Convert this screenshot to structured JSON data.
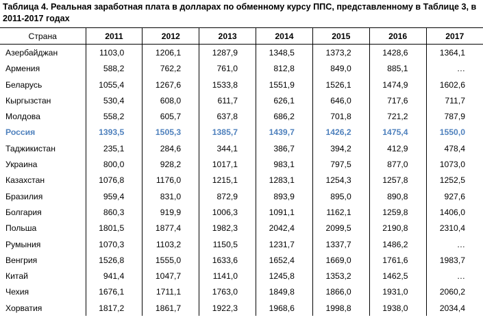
{
  "title": "Таблица 4. Реальная заработная плата в долларах по обменному курсу ППС, представленному в Таблице 3, в 2011-2017 годах",
  "table": {
    "header": [
      "Страна",
      "2011",
      "2012",
      "2013",
      "2014",
      "2015",
      "2016",
      "2017"
    ],
    "rows": [
      [
        "Азербайджан",
        "1103,0",
        "1206,1",
        "1287,9",
        "1348,5",
        "1373,2",
        "1428,6",
        "1364,1"
      ],
      [
        "Армения",
        "588,2",
        "762,2",
        "761,0",
        "812,8",
        "849,0",
        "885,1",
        "…"
      ],
      [
        "Беларусь",
        "1055,4",
        "1267,6",
        "1533,8",
        "1551,9",
        "1526,1",
        "1474,9",
        "1602,6"
      ],
      [
        "Кыргызстан",
        "530,4",
        "608,0",
        "611,7",
        "626,1",
        "646,0",
        "717,6",
        "711,7"
      ],
      [
        "Молдова",
        "558,2",
        "605,7",
        "637,8",
        "686,2",
        "701,8",
        "721,2",
        "787,9"
      ],
      [
        "Россия",
        "1393,5",
        "1505,3",
        "1385,7",
        "1439,7",
        "1426,2",
        "1475,4",
        "1550,0"
      ],
      [
        "Таджикистан",
        "235,1",
        "284,6",
        "344,1",
        "386,7",
        "394,2",
        "412,9",
        "478,4"
      ],
      [
        "Украина",
        "800,0",
        "928,2",
        "1017,1",
        "983,1",
        "797,5",
        "877,0",
        "1073,0"
      ],
      [
        "Казахстан",
        "1076,8",
        "1176,0",
        "1215,1",
        "1283,1",
        "1254,3",
        "1257,8",
        "1252,5"
      ],
      [
        "Бразилия",
        "959,4",
        "831,0",
        "872,9",
        "893,9",
        "895,0",
        "890,8",
        "927,6"
      ],
      [
        "Болгария",
        "860,3",
        "919,9",
        "1006,3",
        "1091,1",
        "1162,1",
        "1259,8",
        "1406,0"
      ],
      [
        "Польша",
        "1801,5",
        "1877,4",
        "1982,3",
        "2042,4",
        "2099,5",
        "2190,8",
        "2310,4"
      ],
      [
        "Румыния",
        "1070,3",
        "1103,2",
        "1150,5",
        "1231,7",
        "1337,7",
        "1486,2",
        "…"
      ],
      [
        "Венгрия",
        "1526,8",
        "1555,0",
        "1633,6",
        "1652,4",
        "1669,0",
        "1761,6",
        "1983,7"
      ],
      [
        "Китай",
        "941,4",
        "1047,7",
        "1141,0",
        "1245,8",
        "1353,2",
        "1462,5",
        "…"
      ],
      [
        "Чехия",
        "1676,1",
        "1711,1",
        "1763,0",
        "1849,8",
        "1866,0",
        "1931,0",
        "2060,2"
      ],
      [
        "Хорватия",
        "1817,2",
        "1861,7",
        "1922,3",
        "1968,6",
        "1998,8",
        "1938,0",
        "2034,4"
      ]
    ]
  }
}
